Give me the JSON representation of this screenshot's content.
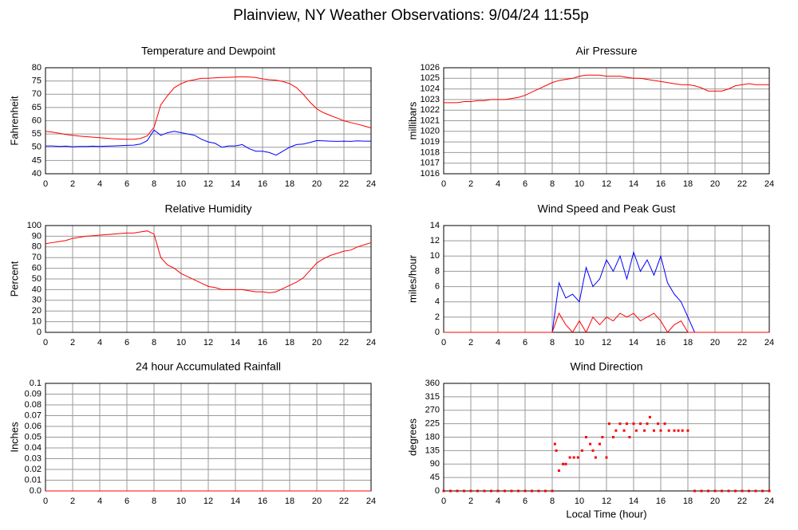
{
  "title": "Plainview, NY Weather Observations: 9/04/24 11:55p",
  "chart_data": [
    {
      "type": "line",
      "title": "Temperature and Dewpoint",
      "ylabel": "Fahrenheit",
      "x": [
        0,
        0.5,
        1,
        1.5,
        2,
        2.5,
        3,
        3.5,
        4,
        4.5,
        5,
        5.5,
        6,
        6.5,
        7,
        7.5,
        8,
        8.5,
        9,
        9.5,
        10,
        10.5,
        11,
        11.5,
        12,
        12.5,
        13,
        13.5,
        14,
        14.5,
        15,
        15.5,
        16,
        16.5,
        17,
        17.5,
        18,
        18.5,
        19,
        19.5,
        20,
        20.5,
        21,
        21.5,
        22,
        22.5,
        23,
        23.5,
        24
      ],
      "series": [
        {
          "color": "#ff0000",
          "values": [
            56,
            55.7,
            55.3,
            54.8,
            54.5,
            54.2,
            54,
            53.8,
            53.6,
            53.4,
            53.2,
            53.1,
            53,
            53,
            53.3,
            54.3,
            57.5,
            66,
            69.5,
            72.5,
            74,
            75,
            75.5,
            76,
            76,
            76.2,
            76.3,
            76.4,
            76.5,
            76.6,
            76.5,
            76.3,
            75.8,
            75.5,
            75.3,
            74.8,
            74,
            72.5,
            70,
            67,
            64.5,
            63,
            62,
            61,
            60,
            59.3,
            58.7,
            58,
            57.3
          ]
        },
        {
          "color": "#0000ff",
          "values": [
            50.5,
            50.5,
            50.3,
            50.4,
            50.2,
            50.3,
            50.3,
            50.4,
            50.3,
            50.4,
            50.5,
            50.6,
            50.7,
            50.8,
            51.2,
            52.5,
            56.5,
            54.5,
            55.5,
            56,
            55.5,
            55,
            54.5,
            53,
            52,
            51.5,
            50,
            50.5,
            50.5,
            51,
            49.5,
            48.5,
            48.5,
            48,
            47,
            48.5,
            50,
            51,
            51.2,
            51.8,
            52.5,
            52.4,
            52.3,
            52.2,
            52.3,
            52.2,
            52.4,
            52.3,
            52.3
          ]
        }
      ],
      "xlim": [
        0,
        24
      ],
      "xticks": [
        0,
        2,
        4,
        6,
        8,
        10,
        12,
        14,
        16,
        18,
        20,
        22,
        24
      ],
      "ylim": [
        40,
        80
      ],
      "yticks": [
        40,
        45,
        50,
        55,
        60,
        65,
        70,
        75,
        80
      ],
      "grid": true
    },
    {
      "type": "line",
      "title": "Air Pressure",
      "ylabel": "millibars",
      "x": [
        0,
        0.5,
        1,
        1.5,
        2,
        2.5,
        3,
        3.5,
        4,
        4.5,
        5,
        5.5,
        6,
        6.5,
        7,
        7.5,
        8,
        8.5,
        9,
        9.5,
        10,
        10.5,
        11,
        11.5,
        12,
        12.5,
        13,
        13.5,
        14,
        14.5,
        15,
        15.5,
        16,
        16.5,
        17,
        17.5,
        18,
        18.5,
        19,
        19.5,
        20,
        20.5,
        21,
        21.5,
        22,
        22.5,
        23,
        23.5,
        24
      ],
      "series": [
        {
          "color": "#ff0000",
          "values": [
            1022.7,
            1022.7,
            1022.7,
            1022.8,
            1022.8,
            1022.9,
            1022.9,
            1023,
            1023,
            1023,
            1023.1,
            1023.2,
            1023.4,
            1023.7,
            1024,
            1024.3,
            1024.6,
            1024.8,
            1024.9,
            1025,
            1025.2,
            1025.3,
            1025.3,
            1025.3,
            1025.2,
            1025.2,
            1025.2,
            1025.1,
            1025,
            1025,
            1024.9,
            1024.8,
            1024.7,
            1024.6,
            1024.5,
            1024.4,
            1024.4,
            1024.3,
            1024.1,
            1023.8,
            1023.8,
            1023.8,
            1024,
            1024.3,
            1024.4,
            1024.5,
            1024.4,
            1024.4,
            1024.4
          ]
        }
      ],
      "xlim": [
        0,
        24
      ],
      "xticks": [
        0,
        2,
        4,
        6,
        8,
        10,
        12,
        14,
        16,
        18,
        20,
        22,
        24
      ],
      "ylim": [
        1016,
        1026
      ],
      "yticks": [
        1016,
        1017,
        1018,
        1019,
        1020,
        1021,
        1022,
        1023,
        1024,
        1025,
        1026
      ],
      "grid": true
    },
    {
      "type": "line",
      "title": "Relative Humidity",
      "ylabel": "Percent",
      "x": [
        0,
        0.5,
        1,
        1.5,
        2,
        2.5,
        3,
        3.5,
        4,
        4.5,
        5,
        5.5,
        6,
        6.5,
        7,
        7.5,
        8,
        8.5,
        9,
        9.5,
        10,
        10.5,
        11,
        11.5,
        12,
        12.5,
        13,
        13.5,
        14,
        14.5,
        15,
        15.5,
        16,
        16.5,
        17,
        17.5,
        18,
        18.5,
        19,
        19.5,
        20,
        20.5,
        21,
        21.5,
        22,
        22.5,
        23,
        23.5,
        24
      ],
      "series": [
        {
          "color": "#ff0000",
          "values": [
            83,
            84,
            85,
            86,
            88,
            89,
            90,
            90.5,
            91,
            91.5,
            92,
            92.5,
            93,
            93,
            94,
            95,
            92,
            70,
            63,
            60,
            55,
            52,
            49,
            46,
            43,
            42,
            40,
            40,
            40,
            40,
            39,
            38,
            38,
            37,
            38,
            41,
            44,
            47,
            51,
            58,
            65,
            69,
            72,
            74,
            76,
            77,
            80,
            82,
            84
          ]
        }
      ],
      "xlim": [
        0,
        24
      ],
      "xticks": [
        0,
        2,
        4,
        6,
        8,
        10,
        12,
        14,
        16,
        18,
        20,
        22,
        24
      ],
      "ylim": [
        0,
        100
      ],
      "yticks": [
        0,
        10,
        20,
        30,
        40,
        50,
        60,
        70,
        80,
        90,
        100
      ],
      "grid": true
    },
    {
      "type": "line",
      "title": "Wind Speed and Peak Gust",
      "ylabel": "miles/hour",
      "x": [
        0,
        0.5,
        1,
        1.5,
        2,
        2.5,
        3,
        3.5,
        4,
        4.5,
        5,
        5.5,
        6,
        6.5,
        7,
        7.5,
        8,
        8.5,
        9,
        9.5,
        10,
        10.5,
        11,
        11.5,
        12,
        12.5,
        13,
        13.5,
        14,
        14.5,
        15,
        15.5,
        16,
        16.5,
        17,
        17.5,
        18,
        18.5,
        19,
        19.5,
        20,
        20.5,
        21,
        21.5,
        22,
        22.5,
        23,
        23.5,
        24
      ],
      "series": [
        {
          "color": "#0000ff",
          "values": [
            0,
            0,
            0,
            0,
            0,
            0,
            0,
            0,
            0,
            0,
            0,
            0,
            0,
            0,
            0,
            0,
            0,
            6.5,
            4.5,
            5,
            4,
            8.5,
            6,
            7,
            9.5,
            8,
            10,
            7,
            10.5,
            8,
            9.5,
            7.5,
            10,
            6.5,
            5,
            4,
            2,
            0,
            0,
            0,
            0,
            0,
            0,
            0,
            0,
            0,
            0,
            0,
            0
          ]
        },
        {
          "color": "#ff0000",
          "values": [
            0,
            0,
            0,
            0,
            0,
            0,
            0,
            0,
            0,
            0,
            0,
            0,
            0,
            0,
            0,
            0,
            0,
            2.5,
            1,
            0,
            1.5,
            0,
            2,
            1,
            2,
            1.5,
            2.5,
            2,
            2.5,
            1.5,
            2,
            2.5,
            1.5,
            0,
            1,
            1.5,
            0,
            0,
            0,
            0,
            0,
            0,
            0,
            0,
            0,
            0,
            0,
            0,
            0
          ]
        }
      ],
      "xlim": [
        0,
        24
      ],
      "xticks": [
        0,
        2,
        4,
        6,
        8,
        10,
        12,
        14,
        16,
        18,
        20,
        22,
        24
      ],
      "ylim": [
        0,
        14
      ],
      "yticks": [
        0,
        2,
        4,
        6,
        8,
        10,
        12,
        14
      ],
      "grid": true
    },
    {
      "type": "line",
      "title": "24 hour Accumulated Rainfall",
      "ylabel": "Inches",
      "x": [
        0,
        24
      ],
      "series": [
        {
          "color": "#ff0000",
          "values": [
            0,
            0
          ]
        }
      ],
      "xlim": [
        0,
        24
      ],
      "xticks": [
        0,
        2,
        4,
        6,
        8,
        10,
        12,
        14,
        16,
        18,
        20,
        22,
        24
      ],
      "ylim": [
        0,
        0.1
      ],
      "yticks": [
        {
          "value": 0,
          "label": "0.0"
        },
        0.01,
        0.02,
        0.03,
        0.04,
        0.05,
        0.06,
        0.07,
        0.08,
        0.09,
        0.1
      ],
      "grid": true
    },
    {
      "type": "scatter",
      "title": "Wind Direction",
      "ylabel": "degrees",
      "xlabel": "Local Time (hour)",
      "x": [
        0,
        0.5,
        1,
        1.5,
        2,
        2.5,
        3,
        3.5,
        4,
        4.5,
        5,
        5.5,
        6,
        6.5,
        7,
        7.5,
        8,
        8.2,
        8.3,
        8.5,
        8.8,
        9,
        9.3,
        9.6,
        9.9,
        10.2,
        10.5,
        10.8,
        11,
        11.2,
        11.5,
        11.7,
        12,
        12.2,
        12.5,
        12.7,
        13,
        13.3,
        13.5,
        13.7,
        14,
        14.2,
        14.5,
        14.8,
        15,
        15.2,
        15.5,
        15.8,
        16,
        16.3,
        16.6,
        17,
        17.3,
        17.6,
        18,
        18.5,
        19,
        19.5,
        20,
        20.5,
        21,
        21.5,
        22,
        22.5,
        23,
        23.5,
        24
      ],
      "series": [
        {
          "color": "#ff0000",
          "values": [
            0,
            0,
            0,
            0,
            0,
            0,
            0,
            0,
            0,
            0,
            0,
            0,
            0,
            0,
            0,
            0,
            0,
            157,
            135,
            68,
            90,
            90,
            112,
            112,
            112,
            135,
            180,
            157,
            135,
            112,
            157,
            180,
            112,
            225,
            180,
            202,
            225,
            202,
            225,
            180,
            225,
            202,
            225,
            202,
            225,
            247,
            202,
            225,
            202,
            225,
            202,
            202,
            202,
            202,
            202,
            0,
            0,
            0,
            0,
            0,
            0,
            0,
            0,
            0,
            0,
            0,
            0
          ]
        }
      ],
      "xlim": [
        0,
        24
      ],
      "xticks": [
        0,
        2,
        4,
        6,
        8,
        10,
        12,
        14,
        16,
        18,
        20,
        22,
        24
      ],
      "ylim": [
        0,
        360
      ],
      "yticks": [
        0,
        45,
        90,
        135,
        180,
        225,
        270,
        315,
        360
      ],
      "grid": true
    }
  ]
}
